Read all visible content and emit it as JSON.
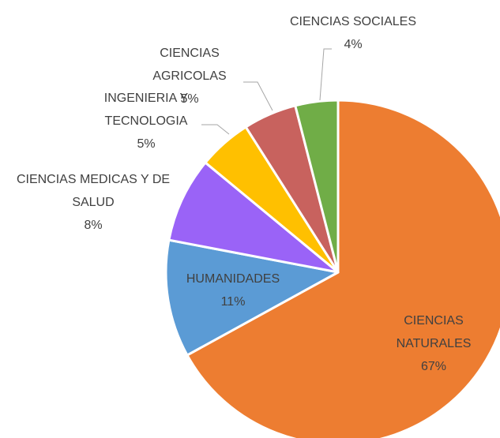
{
  "chart_data": {
    "type": "pie",
    "categories": [
      "CIENCIAS NATURALES",
      "HUMANIDADES",
      "CIENCIAS MEDICAS Y DE SALUD",
      "INGENIERIA Y TECNOLOGIA",
      "CIENCIAS AGRICOLAS",
      "CIENCIAS SOCIALES"
    ],
    "values": [
      67,
      11,
      8,
      5,
      5,
      4
    ],
    "value_labels": [
      "67%",
      "11%",
      "8%",
      "5%",
      "5%",
      "4%"
    ],
    "colors": [
      "#ed7d31",
      "#5b9bd5",
      "#9a63f7",
      "#ffc000",
      "#c8625e",
      "#70ad47"
    ]
  }
}
